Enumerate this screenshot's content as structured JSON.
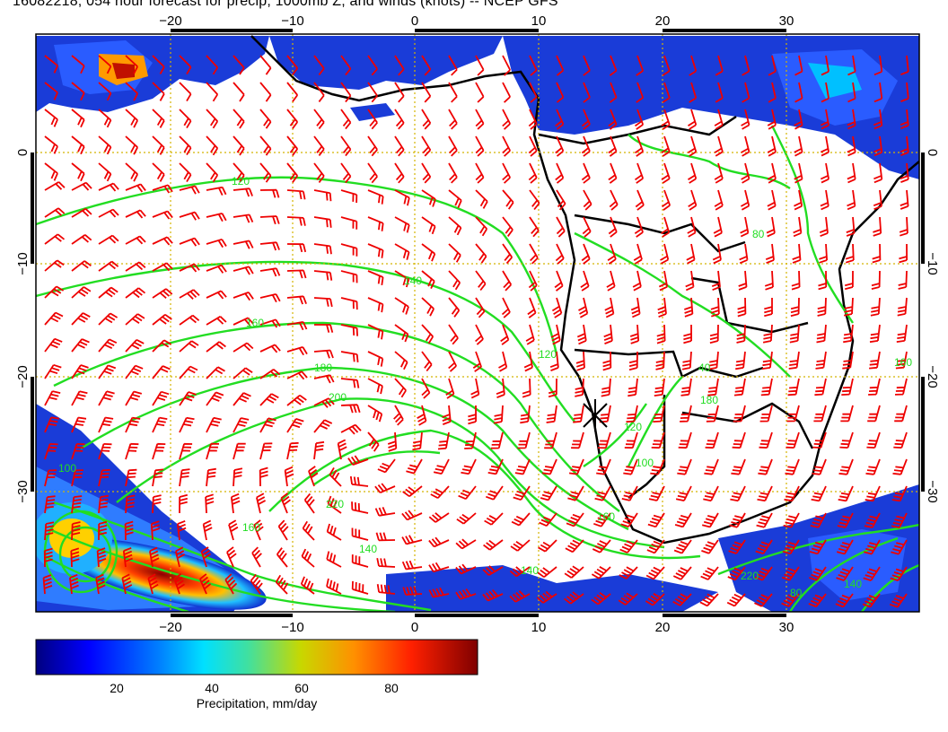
{
  "title": "16082218, 054 hour forecast for precip, 1000mb Z, and winds (knots) -- NCEP GFS",
  "map": {
    "lon_ticks": [
      "−20",
      "−10",
      "0",
      "10",
      "20",
      "30"
    ],
    "lat_ticks": [
      "0",
      "−10",
      "−20",
      "−30"
    ],
    "contour_labels": [
      "120",
      "140",
      "160",
      "180",
      "200",
      "220",
      "160",
      "140",
      "120",
      "100",
      "220",
      "180",
      "160",
      "140",
      "120",
      "100",
      "80",
      "80",
      "140",
      "160",
      "40"
    ],
    "grid": true,
    "colors": {
      "frame": "#000000",
      "grid": "#d4b400",
      "wind_barbs": "#ee0000",
      "contours": "#22dd22",
      "coastline": "#000000"
    }
  },
  "colorbar": {
    "ticks": [
      "20",
      "40",
      "60",
      "80"
    ],
    "label": "Precipitation, mm/day",
    "colors": [
      "#00007f",
      "#0000ff",
      "#0080ff",
      "#00e0ff",
      "#40e0a0",
      "#c8d800",
      "#ff9000",
      "#ff2000",
      "#7f0000"
    ]
  }
}
